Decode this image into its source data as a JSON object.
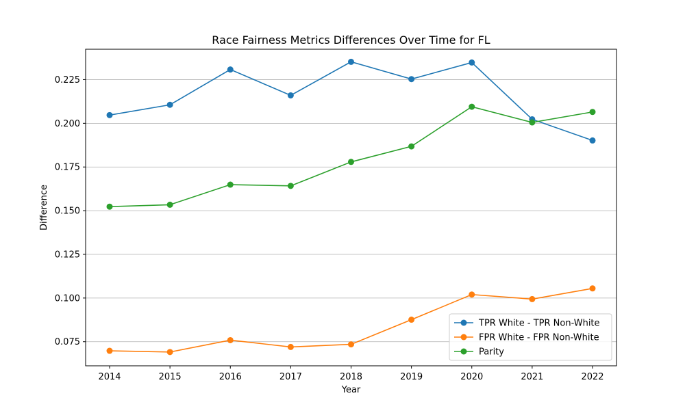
{
  "chart_data": {
    "type": "line",
    "title": "Race Fairness Metrics Differences Over Time for FL",
    "xlabel": "Year",
    "ylabel": "Difference",
    "x": [
      "2014",
      "2015",
      "2016",
      "2017",
      "2018",
      "2019",
      "2020",
      "2021",
      "2022"
    ],
    "y_ticks": [
      "0.075",
      "0.100",
      "0.125",
      "0.150",
      "0.175",
      "0.200",
      "0.225"
    ],
    "y_tick_values": [
      0.075,
      0.1,
      0.125,
      0.15,
      0.175,
      0.2,
      0.225
    ],
    "ylim": [
      0.0612,
      0.2424
    ],
    "grid": "horizontal",
    "legend_position": "lower right",
    "series": [
      {
        "name": "TPR White - TPR Non-White",
        "color": "#1f77b4",
        "marker": "circle",
        "values": [
          0.2047,
          0.2106,
          0.2308,
          0.216,
          0.2352,
          0.2253,
          0.2348,
          0.2023,
          0.1902
        ]
      },
      {
        "name": "FPR White - FPR Non-White",
        "color": "#ff7f0e",
        "marker": "circle",
        "values": [
          0.0698,
          0.0691,
          0.0759,
          0.072,
          0.0735,
          0.0876,
          0.102,
          0.0994,
          0.1055
        ]
      },
      {
        "name": "Parity",
        "color": "#2ca02c",
        "marker": "circle",
        "values": [
          0.1523,
          0.1534,
          0.1649,
          0.1642,
          0.1779,
          0.1868,
          0.2095,
          0.2005,
          0.2065
        ]
      }
    ]
  }
}
